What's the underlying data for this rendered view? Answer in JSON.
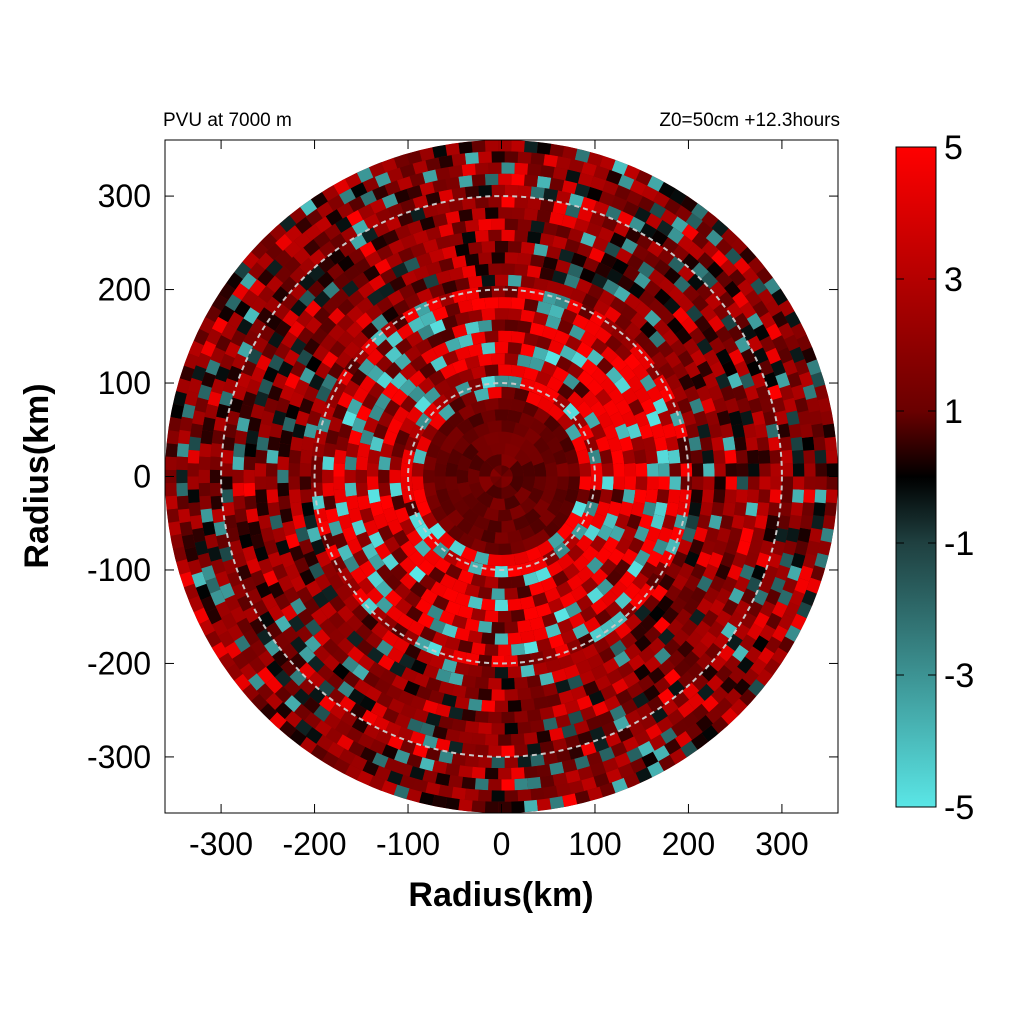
{
  "chart_data": {
    "type": "heatmap",
    "title_left": "PVU at  7000 m",
    "title_right": "Z0=50cm  +12.3hours",
    "xlabel": "Radius(km)",
    "ylabel": "Radius(km)",
    "xlim": [
      -360,
      360
    ],
    "ylim": [
      -360,
      360
    ],
    "x_ticks": [
      -300,
      -200,
      -100,
      0,
      100,
      200,
      300
    ],
    "y_ticks": [
      300,
      200,
      100,
      0,
      -100,
      -200,
      -300
    ],
    "x_tick_labels": [
      "-300",
      "-200",
      "-100",
      "0",
      "100",
      "200",
      "300"
    ],
    "y_tick_labels": [
      "300",
      "200",
      "100",
      "0",
      "-100",
      "-200",
      "-300"
    ],
    "domain_radius_km": 360,
    "reference_circles_km": [
      100,
      200,
      300
    ],
    "colorbar": {
      "min": -5,
      "max": 5,
      "ticks": [
        5,
        3,
        1,
        -1,
        -3,
        -5
      ],
      "tick_labels": [
        "5",
        "3",
        "1",
        "-1",
        "-3",
        "-5"
      ],
      "colors": {
        "low": "#5ae6e6",
        "mid": "#000000",
        "high": "#ff0000"
      }
    },
    "field_description_values": {
      "inner_core_mean": 1.5,
      "eyewall_band_km": [
        80,
        200
      ],
      "eyewall_peak": 5,
      "negative_patches_min": -5,
      "outer_mean": 2
    },
    "grid": false
  }
}
